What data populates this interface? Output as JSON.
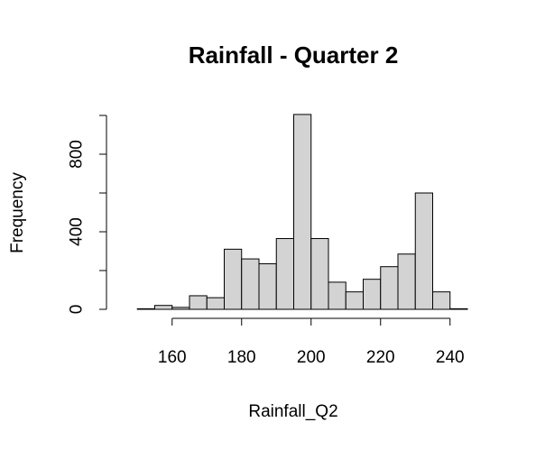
{
  "chart_data": {
    "type": "histogram",
    "title": "Rainfall - Quarter 2",
    "xlabel": "Rainfall_Q2",
    "ylabel": "Frequency",
    "bin_edges": [
      145,
      150,
      155,
      160,
      165,
      170,
      175,
      180,
      185,
      190,
      195,
      200,
      205,
      210,
      215,
      220,
      225,
      230,
      235,
      240,
      245
    ],
    "values": [
      0,
      3,
      20,
      10,
      70,
      60,
      310,
      260,
      235,
      365,
      1005,
      365,
      140,
      90,
      155,
      220,
      285,
      600,
      90,
      3
    ],
    "xlim": [
      145,
      245
    ],
    "ylim": [
      0,
      1000
    ],
    "x_ticks": [
      160,
      180,
      200,
      220,
      240
    ],
    "y_ticks": [
      0,
      400,
      800
    ],
    "y_minor_ticks": [
      0,
      200,
      400,
      600,
      800,
      1000
    ],
    "bar_color": "#d3d3d3",
    "grid": false,
    "legend": "none"
  }
}
